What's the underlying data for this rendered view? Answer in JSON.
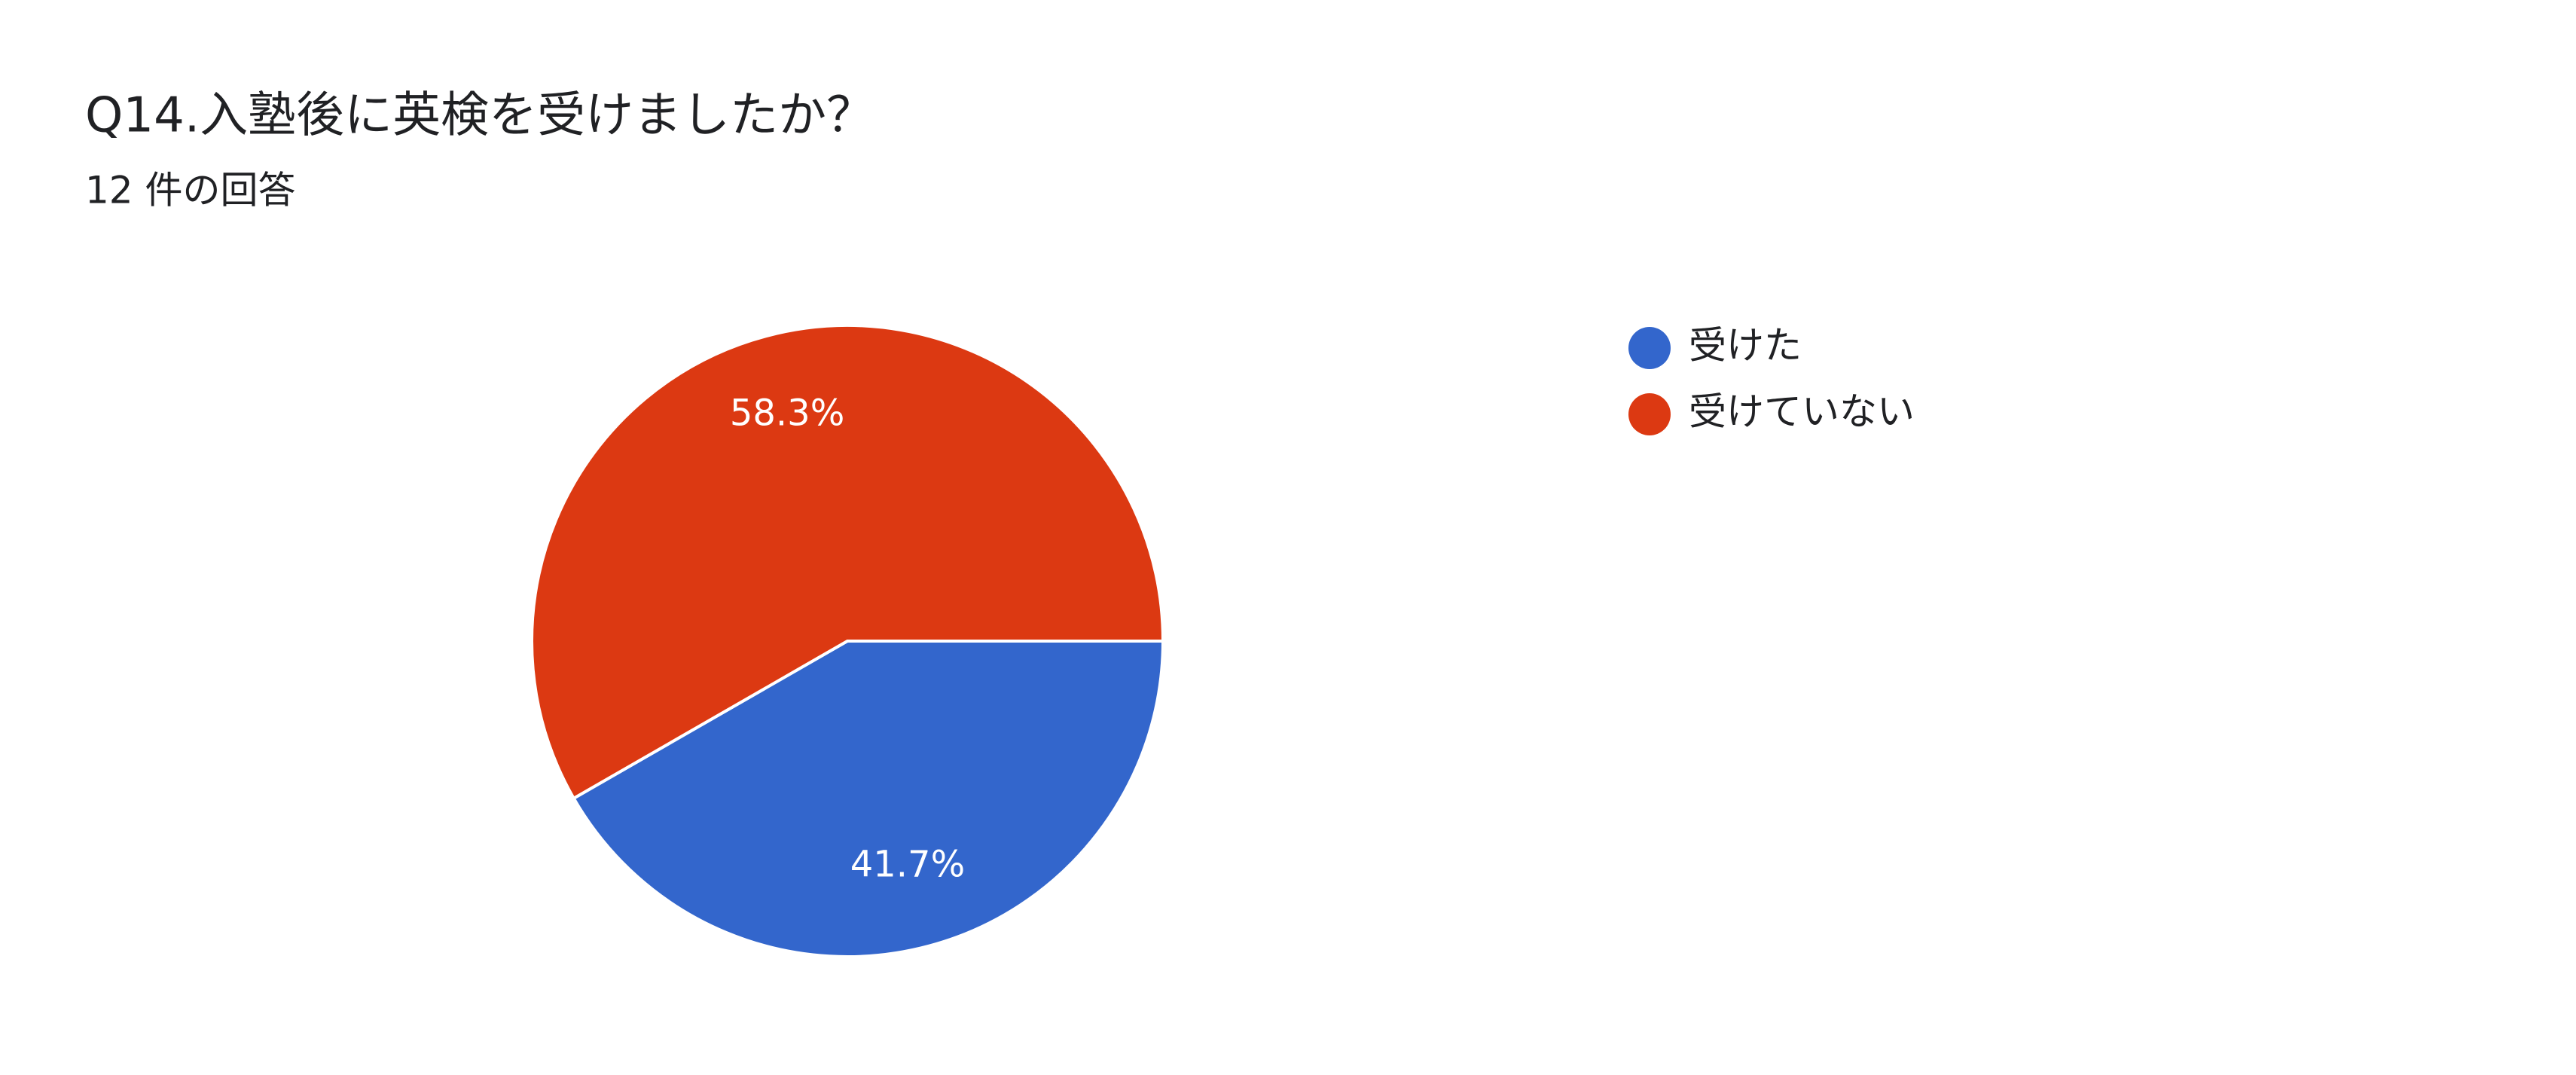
{
  "chart_data": {
    "type": "pie",
    "title": "Q14.入塾後に英検を受けましたか？",
    "subtitle": "12 件の回答",
    "categories": [
      "受けた",
      "受けていない"
    ],
    "values": [
      41.7,
      58.3
    ],
    "value_labels": [
      "41.7%",
      "58.3%"
    ],
    "colors": [
      "#3366cc",
      "#dc3912"
    ],
    "legend": "right"
  }
}
